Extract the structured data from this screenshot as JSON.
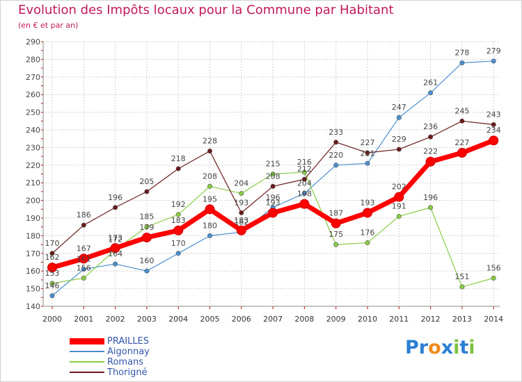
{
  "chart_data": {
    "type": "line",
    "title": "Evolution des Impôts locaux pour la Commune par Habitant",
    "subtitle": "(en € et par an)",
    "categories": [
      "2000",
      "2001",
      "2002",
      "2003",
      "2004",
      "2005",
      "2006",
      "2007",
      "2008",
      "2009",
      "2010",
      "2011",
      "2012",
      "2013",
      "2014"
    ],
    "ylim": [
      140,
      290
    ],
    "yticks": [
      140,
      150,
      160,
      170,
      180,
      190,
      200,
      210,
      220,
      230,
      240,
      250,
      260,
      270,
      280,
      290
    ],
    "grid": true,
    "legend_position": "bottom-left",
    "series": [
      {
        "name": "PRAILLES",
        "color": "#ff0000",
        "values": [
          162,
          167,
          173,
          179,
          183,
          195,
          183,
          193,
          198,
          187,
          193,
          202,
          222,
          227,
          234
        ]
      },
      {
        "name": "Aigonnay",
        "color": "#4a8fd0",
        "values": [
          146,
          161,
          164,
          160,
          170,
          180,
          182,
          196,
          204,
          220,
          221,
          247,
          261,
          278,
          279
        ]
      },
      {
        "name": "Romans",
        "color": "#88cc44",
        "values": [
          153,
          156,
          172,
          185,
          192,
          208,
          204,
          215,
          216,
          175,
          176,
          191,
          196,
          151,
          156
        ]
      },
      {
        "name": "Thorigné",
        "color": "#6b1a1a",
        "values": [
          170,
          186,
          196,
          205,
          218,
          228,
          193,
          208,
          212,
          233,
          227,
          229,
          236,
          245,
          243
        ]
      }
    ]
  },
  "brand": {
    "letters": [
      {
        "char": "P",
        "color": "#2a7fd4"
      },
      {
        "char": "r",
        "color": "#2a7fd4"
      },
      {
        "char": "o",
        "color": "#f08a1c"
      },
      {
        "char": "x",
        "color": "#2a7fd4"
      },
      {
        "char": "i",
        "color": "#7cc242"
      },
      {
        "char": "t",
        "color": "#2a7fd4"
      },
      {
        "char": "i",
        "color": "#7cc242"
      }
    ]
  }
}
